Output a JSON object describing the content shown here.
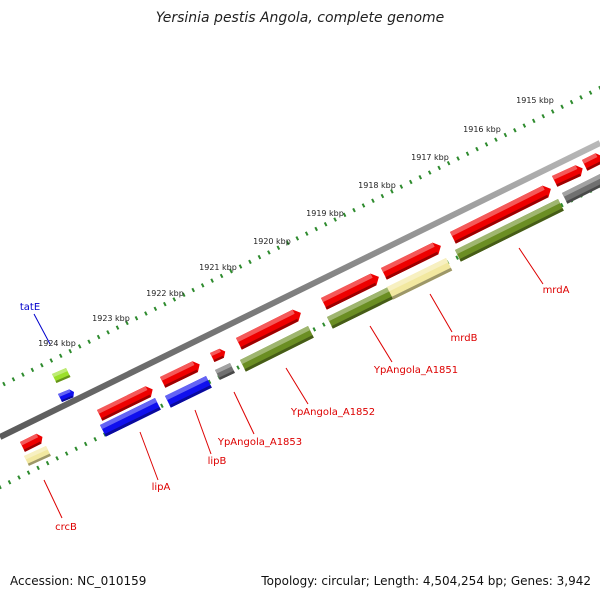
{
  "title": "Yersinia pestis Angola, complete genome",
  "footer": {
    "accession": "Accession: NC_010159",
    "topology": "Topology: circular; Length: 4,504,254 bp; Genes: 3,942"
  },
  "colors": {
    "backbone": "#808080",
    "ruler": "#2e8b2e",
    "forward_gene": "#ee0000",
    "reverse_gene": "#1010ee",
    "cds_feature": "#6b8e23",
    "misc_feature": "#f2e8a0",
    "pseudo": "#707070",
    "trna": "#9be02a",
    "label_red": "#dd0000",
    "label_blue": "#0000cc"
  },
  "ruler_ticks": [
    {
      "label": "1915 kbp"
    },
    {
      "label": "1916 kbp"
    },
    {
      "label": "1917 kbp"
    },
    {
      "label": "1918 kbp"
    },
    {
      "label": "1919 kbp"
    },
    {
      "label": "1920 kbp"
    },
    {
      "label": "1921 kbp"
    },
    {
      "label": "1922 kbp"
    },
    {
      "label": "1923 kbp"
    },
    {
      "label": "1924 kbp"
    }
  ],
  "gene_labels": [
    {
      "name": "tatE",
      "color": "blue"
    },
    {
      "name": "crcB",
      "color": "red"
    },
    {
      "name": "lipA",
      "color": "red"
    },
    {
      "name": "lipB",
      "color": "red"
    },
    {
      "name": "YpAngola_A1853",
      "color": "red"
    },
    {
      "name": "YpAngola_A1852",
      "color": "red"
    },
    {
      "name": "YpAngola_A1851",
      "color": "red"
    },
    {
      "name": "mrdB",
      "color": "red"
    },
    {
      "name": "mrdA",
      "color": "red"
    }
  ]
}
